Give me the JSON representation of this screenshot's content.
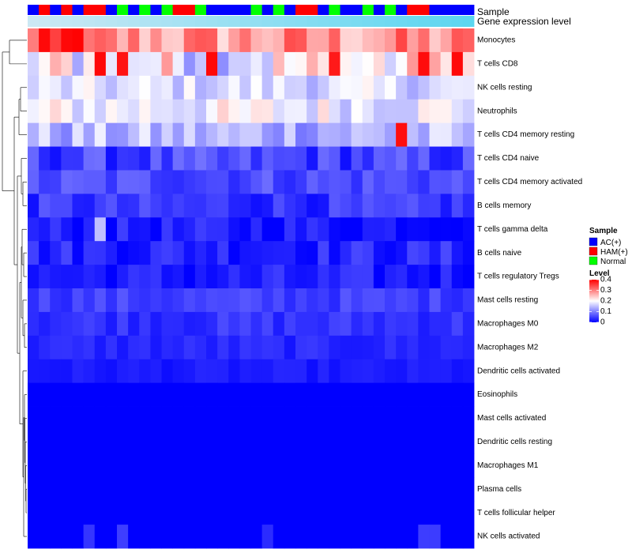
{
  "chart_data": {
    "type": "heatmap",
    "title": "",
    "annotation_tracks": [
      {
        "name": "Sample",
        "type": "categorical"
      },
      {
        "name": "Gene expression level",
        "type": "continuous"
      }
    ],
    "sample_groups": [
      "A",
      "H",
      "A",
      "H",
      "A",
      "H",
      "H",
      "A",
      "G",
      "A",
      "G",
      "A",
      "G",
      "H",
      "H",
      "G",
      "A",
      "A",
      "A",
      "A",
      "G",
      "A",
      "G",
      "A",
      "H",
      "H",
      "A",
      "G",
      "A",
      "A",
      "G",
      "A",
      "G",
      "A",
      "H",
      "H",
      "A",
      "A",
      "A",
      "A"
    ],
    "legend": {
      "sample_title": "Sample",
      "sample_items": [
        {
          "label": "AC(+)",
          "color": "#0000FF"
        },
        {
          "label": "HAM(+)",
          "color": "#FF0000"
        },
        {
          "label": "Normal",
          "color": "#00FF00"
        }
      ],
      "level_title": "Level",
      "level_ticks": [
        "0.4",
        "0.3",
        "0.2",
        "0.1",
        "0"
      ],
      "placement": "right"
    },
    "color_scale": {
      "low": "#0000FF",
      "mid": "#FFFFFF",
      "high": "#FF0000",
      "range": [
        0,
        0.4
      ]
    },
    "rows": [
      "Monocytes",
      "T cells CD8",
      "NK cells resting",
      "Neutrophils",
      "T cells CD4 memory resting",
      "T cells CD4 naive",
      "T cells CD4 memory activated",
      "B cells memory",
      "T cells gamma delta",
      "B cells naive",
      "T cells regulatory  Tregs",
      "Mast cells resting",
      "Macrophages M0",
      "Macrophages M2",
      "Dendritic cells activated",
      "Eosinophils",
      "Mast cells activated",
      "Dendritic cells resting",
      "Macrophages M1",
      "Plasma cells",
      "T cells follicular helper",
      "NK cells activated"
    ],
    "row_base_values": [
      0.28,
      0.2,
      0.17,
      0.19,
      0.14,
      0.05,
      0.06,
      0.04,
      0.02,
      0.03,
      0.02,
      0.05,
      0.04,
      0.03,
      0.02,
      0.0,
      0.0,
      0.0,
      0.0,
      0.0,
      0.0,
      0.005
    ],
    "row_variation": [
      0.07,
      0.09,
      0.04,
      0.05,
      0.05,
      0.04,
      0.03,
      0.03,
      0.03,
      0.03,
      0.03,
      0.02,
      0.02,
      0.015,
      0.01,
      0.0,
      0.0,
      0.0,
      0.0,
      0.0,
      0.0,
      0.01
    ],
    "n_columns": 40,
    "xlabel": "",
    "ylabel": ""
  }
}
